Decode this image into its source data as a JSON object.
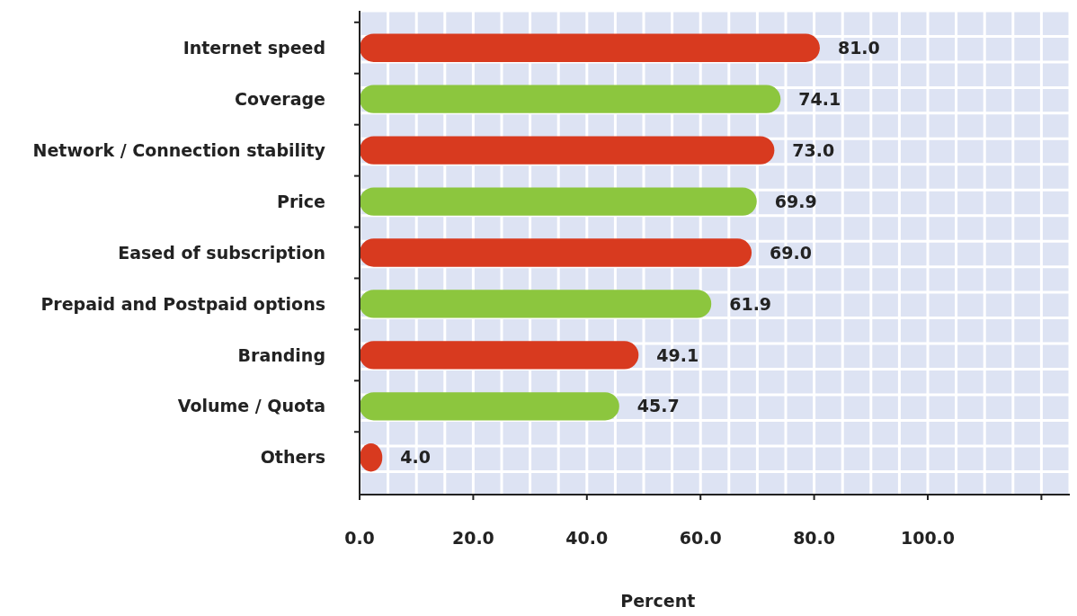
{
  "chart_data": {
    "type": "bar",
    "orientation": "horizontal",
    "xlabel": "Percent",
    "categories": [
      "Internet speed",
      "Coverage",
      "Network / Connection stability",
      "Price",
      "Eased of subscription",
      "Prepaid and Postpaid options",
      "Branding",
      "Volume / Quota",
      "Others"
    ],
    "values": [
      81.0,
      74.1,
      73.0,
      69.9,
      69.0,
      61.9,
      49.1,
      45.7,
      4.0
    ],
    "colors": [
      "#d83a1f",
      "#8cc63e",
      "#d83a1f",
      "#8cc63e",
      "#d83a1f",
      "#8cc63e",
      "#d83a1f",
      "#8cc63e",
      "#d83a1f"
    ],
    "value_labels": [
      "81.0",
      "74.1",
      "73.0",
      "69.9",
      "69.0",
      "61.9",
      "49.1",
      "45.7",
      "4.0"
    ],
    "xlim": [
      0,
      125
    ],
    "xticks": [
      {
        "value": 0,
        "label": "0.0"
      },
      {
        "value": 20,
        "label": "20.0"
      },
      {
        "value": 40,
        "label": "40.0"
      },
      {
        "value": 60,
        "label": "60.0"
      },
      {
        "value": 80,
        "label": "80.0"
      },
      {
        "value": 100,
        "label": "100.0"
      },
      {
        "value": 120,
        "label": null
      }
    ],
    "grid": true
  }
}
